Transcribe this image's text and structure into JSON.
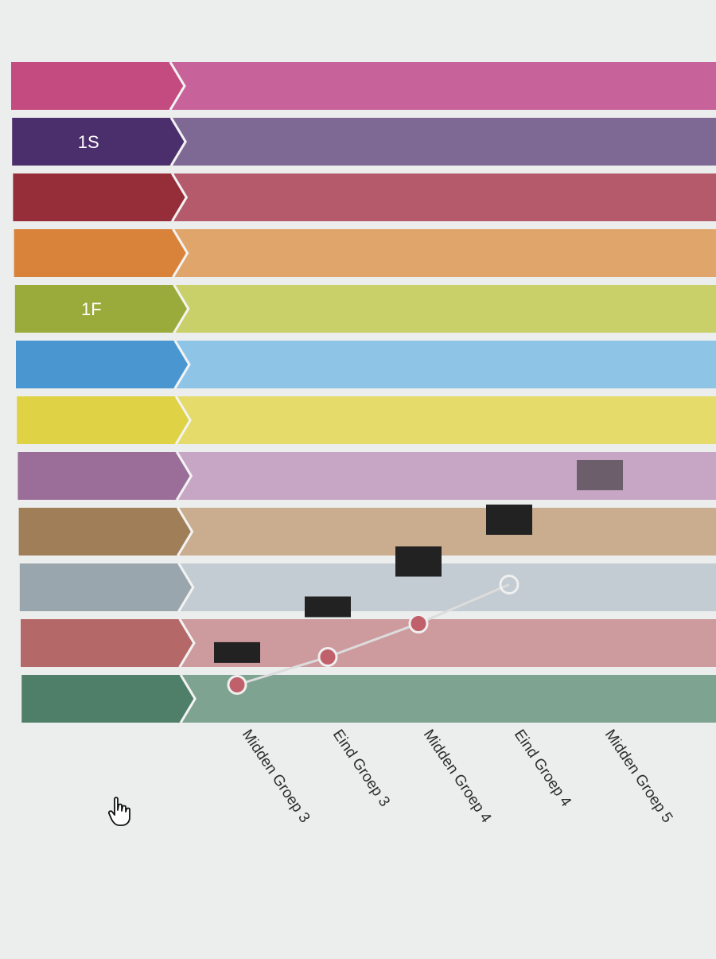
{
  "chart_data": {
    "type": "scatter",
    "title": "",
    "xlabel": "",
    "ylabel": "",
    "categories": [
      "Midden Groep 3",
      "Eind Groep 3",
      "Midden Groep 4",
      "Eind Groep 4",
      "Midden Groep 5"
    ],
    "levels": [
      {
        "label": "",
        "color": "#c44b7f",
        "band_color": "#c7639a"
      },
      {
        "label": "1S",
        "color": "#4b2e6c",
        "band_color": "#7e6995"
      },
      {
        "label": "",
        "color": "#962e3a",
        "band_color": "#b45a6b"
      },
      {
        "label": "",
        "color": "#d9823a",
        "band_color": "#e0a56a"
      },
      {
        "label": "1F",
        "color": "#9aab3c",
        "band_color": "#c9d06a"
      },
      {
        "label": "",
        "color": "#4a96d1",
        "band_color": "#8ec5e6"
      },
      {
        "label": "",
        "color": "#e0d245",
        "band_color": "#e4db6a"
      },
      {
        "label": "",
        "color": "#9a6e98",
        "band_color": "#c6a6c4"
      },
      {
        "label": "",
        "color": "#a07e58",
        "band_color": "#c9ad8e"
      },
      {
        "label": "",
        "color": "#9aa6ad",
        "band_color": "#c3ccd2"
      },
      {
        "label": "",
        "color": "#b46868",
        "band_color": "#cd9a9e"
      },
      {
        "label": "",
        "color": "#4f7f68",
        "band_color": "#7fa391"
      }
    ],
    "series": [
      {
        "marker": "rect",
        "color": "#222222",
        "values": [
          10.67,
          9.85,
          8.95,
          8.2,
          7.4
        ],
        "faded": [
          false,
          false,
          false,
          false,
          true
        ]
      },
      {
        "marker": "circle",
        "color": "#c0606a",
        "line_color": "#dcdcdc",
        "values": [
          11.25,
          10.75,
          10.15,
          9.45,
          null
        ]
      }
    ],
    "y_axis": "level bands, 0 = top band, 12 = bottom",
    "grid": true,
    "legend": "none"
  }
}
